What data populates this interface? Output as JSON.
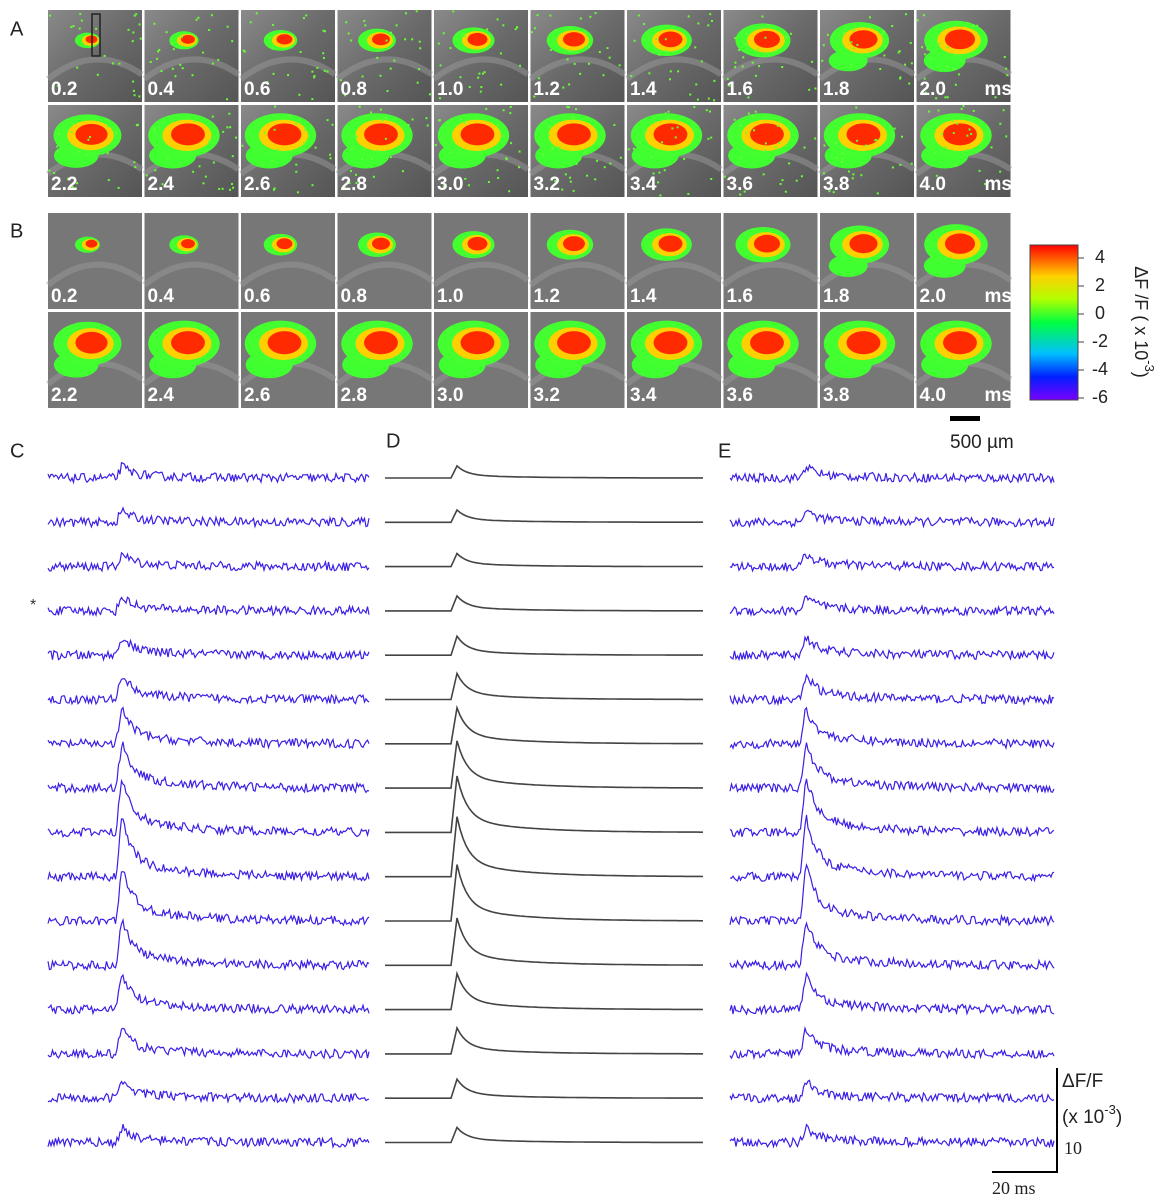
{
  "panel_labels": [
    "A",
    "B",
    "C",
    "D",
    "E"
  ],
  "frame_times": [
    "0.2",
    "0.4",
    "0.6",
    "0.8",
    "1.0",
    "1.2",
    "1.4",
    "1.6",
    "1.8",
    "2.0",
    "2.2",
    "2.4",
    "2.6",
    "2.8",
    "3.0",
    "3.2",
    "3.4",
    "3.6",
    "3.8",
    "4.0"
  ],
  "time_unit": "ms",
  "colorbar": {
    "label": "ΔF /F ( x 10",
    "exponent": "-3",
    "close": ")",
    "ticks": [
      "4",
      "2",
      "0",
      "-2",
      "-4",
      "-6"
    ]
  },
  "space_scale": "500 µm",
  "asterisk": "*",
  "trace_scale": {
    "label": "ΔF/F",
    "unit": "(x 10",
    "exponent": "-3",
    "close": ")",
    "amplitude": "10",
    "time": "20 ms"
  }
}
